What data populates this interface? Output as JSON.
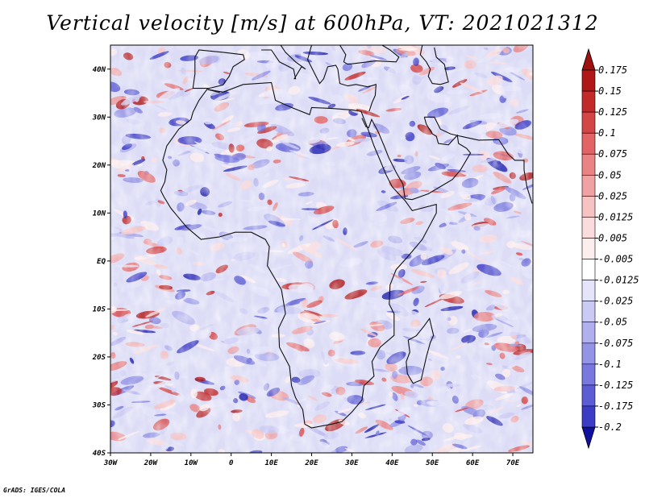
{
  "title": "Vertical velocity [m/s] at 600hPa, VT: 2021021312",
  "footer": "GrADS: IGES/COLA",
  "map": {
    "lat_ticks": [
      "40N",
      "30N",
      "20N",
      "10N",
      "EQ",
      "10S",
      "20S",
      "30S",
      "40S"
    ],
    "lon_ticks": [
      "30W",
      "20W",
      "10W",
      "0",
      "10E",
      "20E",
      "30E",
      "40E",
      "50E",
      "60E",
      "70E"
    ]
  },
  "colorbar": {
    "levels": [
      {
        "label": "0.175",
        "color": "#b01818"
      },
      {
        "label": "0.15",
        "color": "#c22a2a"
      },
      {
        "label": "0.125",
        "color": "#d44646"
      },
      {
        "label": "0.1",
        "color": "#e26464"
      },
      {
        "label": "0.075",
        "color": "#ea8484"
      },
      {
        "label": "0.05",
        "color": "#f0a2a2"
      },
      {
        "label": "0.025",
        "color": "#f6c2c2"
      },
      {
        "label": "0.0125",
        "color": "#fadcdc"
      },
      {
        "label": "0.005",
        "color": "#fdeeee"
      },
      {
        "label": "-0.005",
        "color": "#ffffff"
      },
      {
        "label": "-0.0125",
        "color": "#e4e4fa"
      },
      {
        "label": "-0.025",
        "color": "#cacaf4"
      },
      {
        "label": "-0.05",
        "color": "#b0b0ee"
      },
      {
        "label": "-0.075",
        "color": "#9494e6"
      },
      {
        "label": "-0.1",
        "color": "#7878de"
      },
      {
        "label": "-0.125",
        "color": "#5c5cd4"
      },
      {
        "label": "-0.175",
        "color": "#3c3cc6"
      },
      {
        "label": "-0.2",
        "color": "#2020b0"
      }
    ],
    "top_color": "#a01010",
    "bottom_color": "#1010a0"
  }
}
